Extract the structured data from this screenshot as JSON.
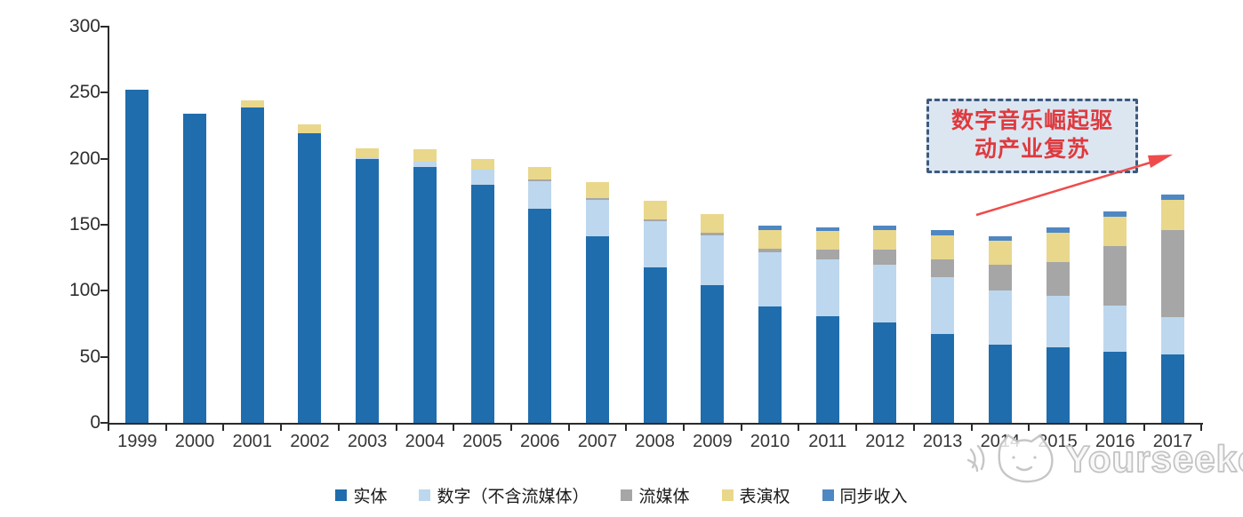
{
  "chart_data": {
    "type": "bar",
    "stacked": true,
    "title": "",
    "xlabel": "",
    "ylabel": "",
    "categories": [
      "1999",
      "2000",
      "2001",
      "2002",
      "2003",
      "2004",
      "2005",
      "2006",
      "2007",
      "2008",
      "2009",
      "2010",
      "2011",
      "2012",
      "2013",
      "2014",
      "2015",
      "2016",
      "2017"
    ],
    "series": [
      {
        "name": "实体",
        "color": "#1f6dad",
        "values": [
          252,
          234,
          239,
          219,
          200,
          194,
          180,
          162,
          141,
          118,
          104,
          88,
          81,
          76,
          67,
          59,
          57,
          54,
          52
        ]
      },
      {
        "name": "数字（不含流媒体）",
        "color": "#bdd7ee",
        "values": [
          0,
          0,
          0,
          0,
          1,
          4,
          12,
          21,
          28,
          35,
          38,
          41,
          43,
          44,
          43,
          41,
          39,
          35,
          28
        ]
      },
      {
        "name": "流媒体",
        "color": "#a6a6a6",
        "values": [
          0,
          0,
          0,
          0,
          0,
          0,
          0,
          1,
          1,
          1,
          2,
          3,
          7,
          11,
          14,
          20,
          26,
          45,
          66
        ]
      },
      {
        "name": "表演权",
        "color": "#e9d78c",
        "values": [
          0,
          0,
          5,
          7,
          7,
          9,
          8,
          10,
          12,
          14,
          14,
          14,
          14,
          15,
          18,
          18,
          22,
          22,
          23
        ]
      },
      {
        "name": "同步收入",
        "color": "#4f87c3",
        "values": [
          0,
          0,
          0,
          0,
          0,
          0,
          0,
          0,
          0,
          0,
          0,
          3,
          3,
          3,
          4,
          3,
          4,
          4,
          4
        ]
      }
    ],
    "ylim": [
      0,
      300
    ],
    "yticks": [
      0,
      50,
      100,
      150,
      200,
      250,
      300
    ],
    "grid": false,
    "legend_position": "bottom"
  },
  "annotation": {
    "line1": "数字音乐崛起驱",
    "line2": "动产业复苏",
    "text_color": "#de3a3e",
    "box_fill": "#dce6f1",
    "box_border": "#3d5a80",
    "arrow_color": "#ef4b4b"
  },
  "watermark": {
    "text": "Yourseeker",
    "logo": "cat-logo",
    "color": "#c3c3c3"
  },
  "axis": {
    "line_color": "#2b2b2b",
    "label_color": "#2f2f2f"
  }
}
